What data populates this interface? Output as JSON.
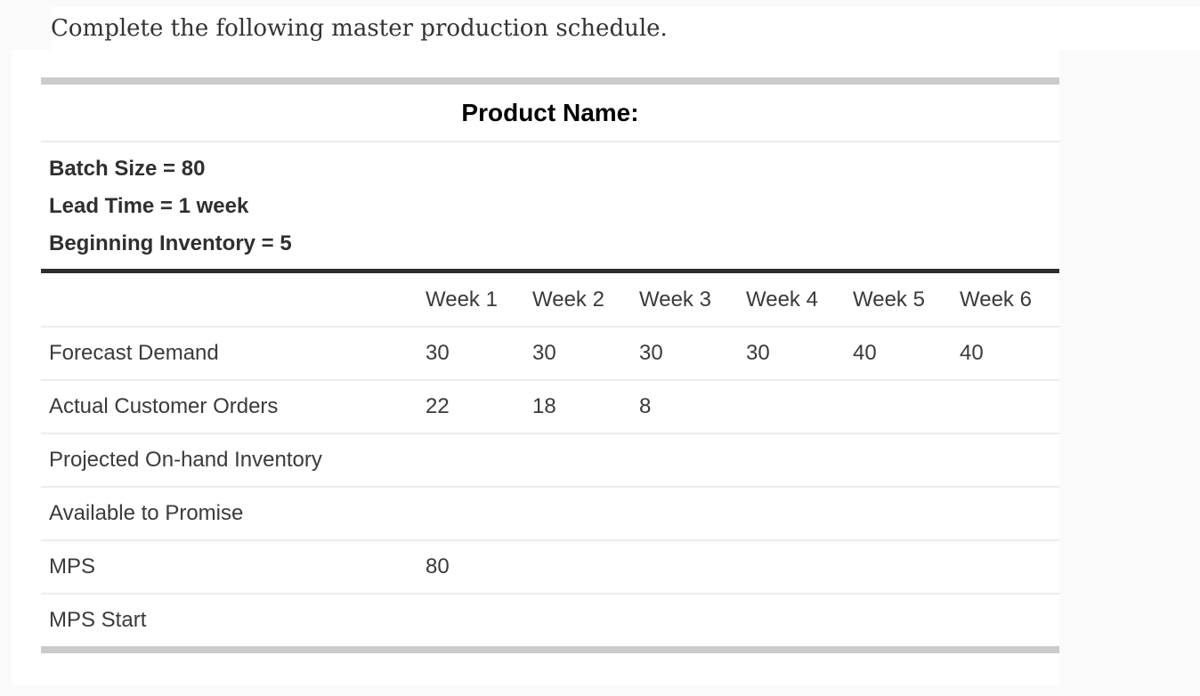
{
  "question": {
    "text": "Complete the following master production schedule."
  },
  "table": {
    "title": "Product Name:",
    "info_lines": [
      "Batch Size = 80",
      "Lead Time = 1 week",
      "Beginning Inventory = 5"
    ],
    "week_headers": [
      "Week 1",
      "Week 2",
      "Week 3",
      "Week 4",
      "Week 5",
      "Week 6"
    ],
    "rows": [
      {
        "label": "Forecast Demand",
        "values": [
          "30",
          "30",
          "30",
          "30",
          "40",
          "40"
        ]
      },
      {
        "label": "Actual Customer Orders",
        "values": [
          "22",
          "18",
          "8",
          "",
          "",
          ""
        ]
      },
      {
        "label": "Projected On-hand Inventory",
        "values": [
          "",
          "",
          "",
          "",
          "",
          ""
        ]
      },
      {
        "label": "Available to Promise",
        "values": [
          "",
          "",
          "",
          "",
          "",
          ""
        ]
      },
      {
        "label": "MPS",
        "values": [
          "80",
          "",
          "",
          "",
          "",
          ""
        ]
      },
      {
        "label": "MPS Start",
        "values": [
          "",
          "",
          "",
          "",
          "",
          ""
        ]
      }
    ],
    "colors": {
      "cap_bar": "#cbcbcb",
      "heavy_rule": "#2d2d2d",
      "row_divider": "#ededed",
      "text": "#3a3a3a"
    }
  }
}
